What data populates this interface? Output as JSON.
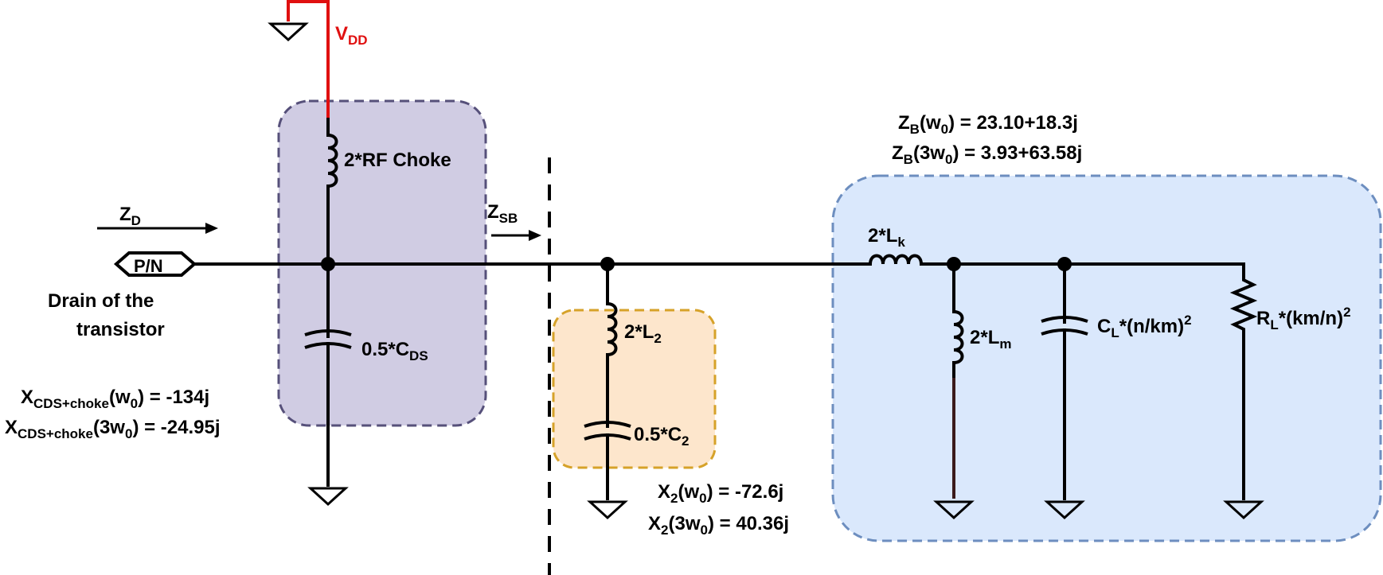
{
  "colors": {
    "vdd": "#e01010",
    "purple_box_fill": "#d0cce3",
    "purple_box_stroke": "#56507a",
    "orange_box_fill": "#fde6cc",
    "orange_box_stroke": "#d6a229",
    "blue_box_fill": "#dae8fc",
    "blue_box_stroke": "#6d8ebf"
  },
  "labels": {
    "vdd": {
      "main": "V",
      "sub": "DD"
    },
    "rf_choke": "2*RF Choke",
    "zd": {
      "main": "Z",
      "sub": "D"
    },
    "zsb": {
      "main": "Z",
      "sub": "SB"
    },
    "port": "P/N",
    "drain_line1": "Drain of the",
    "drain_line2": "transistor",
    "cds": {
      "pre": "0.5*C",
      "sub": "DS"
    },
    "x_cds_w0": {
      "main": "X",
      "sub": "CDS+choke",
      "tail1": "(w",
      "tail_sub": "0",
      "tail2": ") = -134j"
    },
    "x_cds_3w0": {
      "main": "X",
      "sub": "CDS+choke",
      "tail1": "(3w",
      "tail_sub": "0",
      "tail2": ") = -24.95j"
    },
    "l2": {
      "pre": "2*L",
      "sub": "2"
    },
    "c2": {
      "pre": "0.5*C",
      "sub": "2"
    },
    "x2_w0": {
      "main": "X",
      "sub": "2",
      "tail1": "(w",
      "tail_sub": "0",
      "tail2": ") = -72.6j"
    },
    "x2_3w0": {
      "main": "X",
      "sub": "2",
      "tail1": "(3w",
      "tail_sub": "0",
      "tail2": ") = 40.36j"
    },
    "zb_w0": {
      "main": "Z",
      "sub": "B",
      "tail1": "(w",
      "tail_sub": "0",
      "tail2": ") = 23.10+18.3j"
    },
    "zb_3w0": {
      "main": "Z",
      "sub": "B",
      "tail1": "(3w",
      "tail_sub": "0",
      "tail2": ") = 3.93+63.58j"
    },
    "lk": {
      "pre": "2*L",
      "sub": "k"
    },
    "lm": {
      "pre": "2*L",
      "sub": "m"
    },
    "cl": {
      "pre": "C",
      "sub": "L",
      "tail": "*(n/km)",
      "sup": "2"
    },
    "rl": {
      "pre": "R",
      "sub": "L",
      "tail": "*(km/n)",
      "sup": "2"
    }
  },
  "icons": [
    "ground-icon",
    "inductor-icon",
    "capacitor-icon",
    "resistor-icon",
    "junction-dot-icon",
    "port-icon",
    "arrow-icon"
  ]
}
